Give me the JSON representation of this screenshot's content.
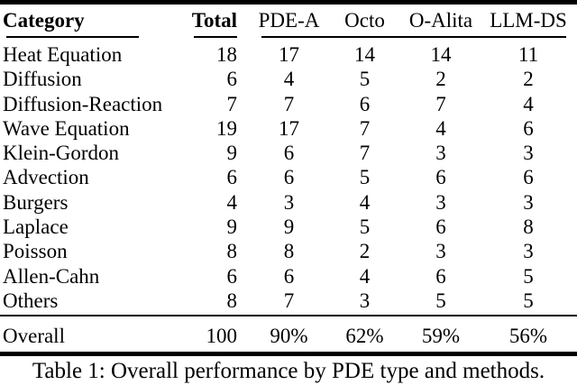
{
  "colors": {
    "text": "#000000",
    "background": "#ffffff",
    "rule": "#000000"
  },
  "table": {
    "headers": {
      "category": "Category",
      "total": "Total",
      "methods": [
        "PDE-A",
        "Octo",
        "O-Alita",
        "LLM-DS"
      ]
    },
    "rows": [
      {
        "category": "Heat Equation",
        "total": "18",
        "values": [
          "17",
          "14",
          "14",
          "11"
        ]
      },
      {
        "category": "Diffusion",
        "total": "6",
        "values": [
          "4",
          "5",
          "2",
          "2"
        ]
      },
      {
        "category": "Diffusion-Reaction",
        "total": "7",
        "values": [
          "7",
          "6",
          "7",
          "4"
        ]
      },
      {
        "category": "Wave Equation",
        "total": "19",
        "values": [
          "17",
          "7",
          "4",
          "6"
        ]
      },
      {
        "category": "Klein-Gordon",
        "total": "9",
        "values": [
          "6",
          "7",
          "3",
          "3"
        ]
      },
      {
        "category": "Advection",
        "total": "6",
        "values": [
          "6",
          "5",
          "6",
          "6"
        ]
      },
      {
        "category": "Burgers",
        "total": "4",
        "values": [
          "3",
          "4",
          "3",
          "3"
        ]
      },
      {
        "category": "Laplace",
        "total": "9",
        "values": [
          "9",
          "5",
          "6",
          "8"
        ]
      },
      {
        "category": "Poisson",
        "total": "8",
        "values": [
          "8",
          "2",
          "3",
          "3"
        ]
      },
      {
        "category": "Allen-Cahn",
        "total": "6",
        "values": [
          "6",
          "4",
          "6",
          "5"
        ]
      },
      {
        "category": "Others",
        "total": "8",
        "values": [
          "7",
          "3",
          "5",
          "5"
        ]
      }
    ],
    "overall": {
      "label": "Overall",
      "total": "100",
      "values": [
        "90%",
        "62%",
        "59%",
        "56%"
      ]
    }
  },
  "caption": "Table 1: Overall performance by PDE type and methods."
}
